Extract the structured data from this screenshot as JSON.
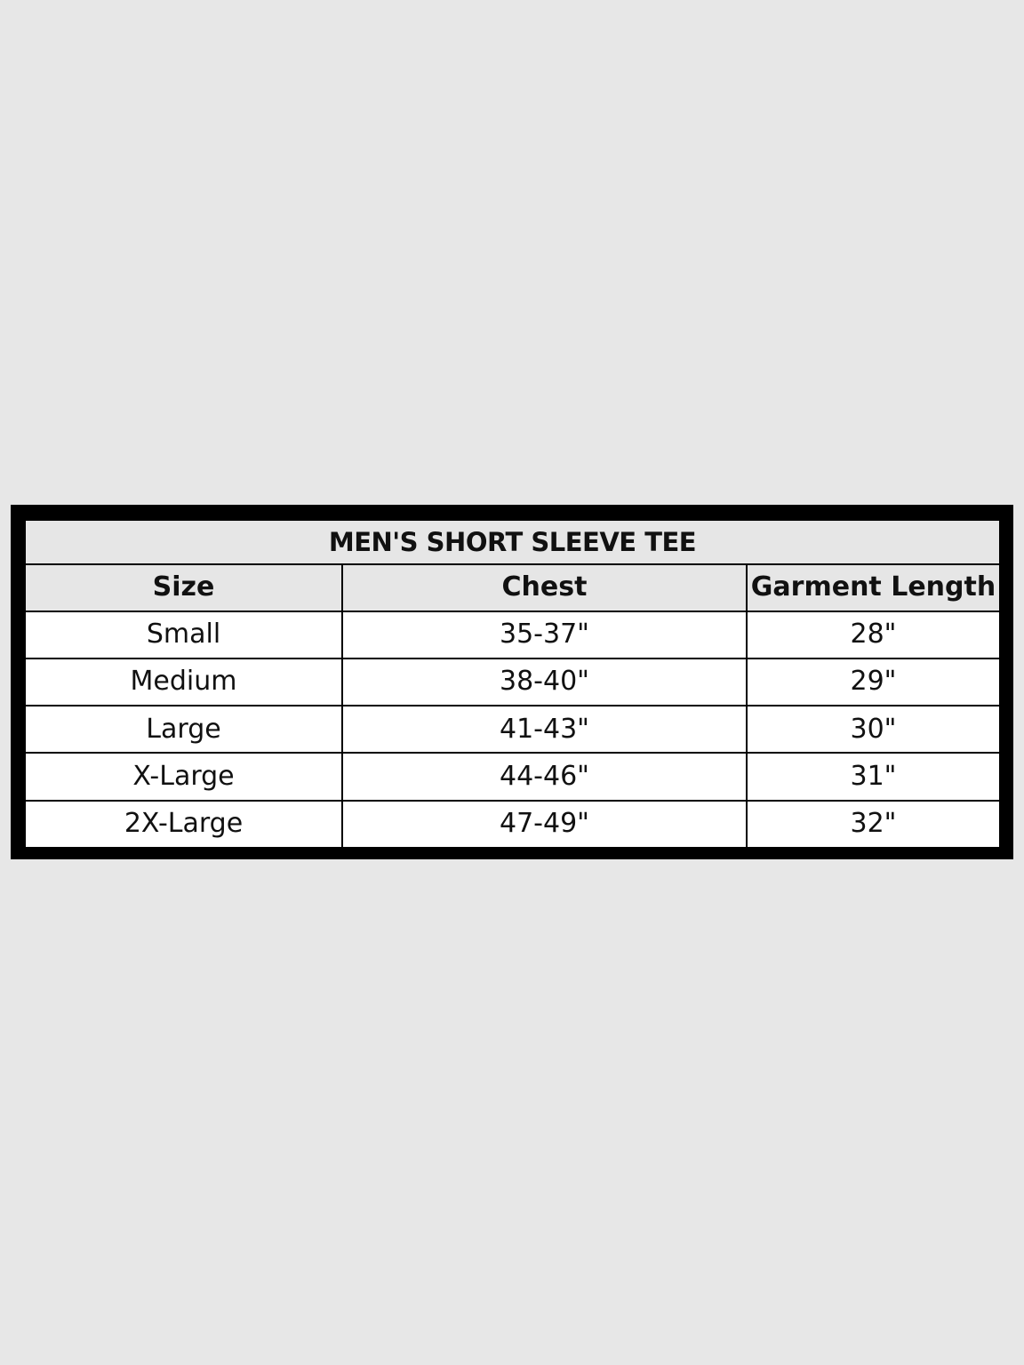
{
  "table": {
    "title": "MEN'S SHORT SLEEVE TEE",
    "headers": [
      "Size",
      "Chest",
      "Garment Length"
    ],
    "rows": [
      [
        "Small",
        "35-37\"",
        "28\""
      ],
      [
        "Medium",
        "38-40\"",
        "29\""
      ],
      [
        "Large",
        "41-43\"",
        "30\""
      ],
      [
        "X-Large",
        "44-46\"",
        "31\""
      ],
      [
        "2X-Large",
        "47-49\"",
        "32\""
      ]
    ]
  },
  "colors": {
    "background": "#e7e7e7",
    "header_fill": "#e6e6e6",
    "border": "#000000"
  }
}
